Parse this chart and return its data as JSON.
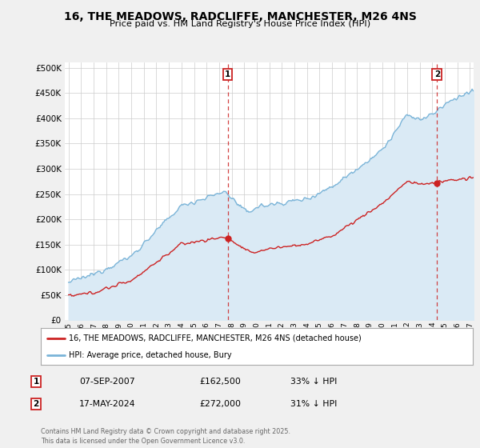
{
  "title": "16, THE MEADOWS, RADCLIFFE, MANCHESTER, M26 4NS",
  "subtitle": "Price paid vs. HM Land Registry's House Price Index (HPI)",
  "legend_line1": "16, THE MEADOWS, RADCLIFFE, MANCHESTER, M26 4NS (detached house)",
  "legend_line2": "HPI: Average price, detached house, Bury",
  "annotation1_date": "07-SEP-2007",
  "annotation1_price": "£162,500",
  "annotation1_hpi": "33% ↓ HPI",
  "annotation2_date": "17-MAY-2024",
  "annotation2_price": "£272,000",
  "annotation2_hpi": "31% ↓ HPI",
  "footer": "Contains HM Land Registry data © Crown copyright and database right 2025.\nThis data is licensed under the Open Government Licence v3.0.",
  "hpi_color": "#7ab4d8",
  "hpi_fill": "#daeaf5",
  "price_color": "#cc2222",
  "vline_color": "#cc2222",
  "background_color": "#f0f0f0",
  "plot_background": "#ffffff",
  "ylim": [
    0,
    510000
  ],
  "yticks": [
    0,
    50000,
    100000,
    150000,
    200000,
    250000,
    300000,
    350000,
    400000,
    450000,
    500000
  ],
  "sale1_x": 2007.68,
  "sale1_y": 162500,
  "sale2_x": 2024.38,
  "sale2_y": 272000,
  "xmin": 1994.7,
  "xmax": 2027.3
}
